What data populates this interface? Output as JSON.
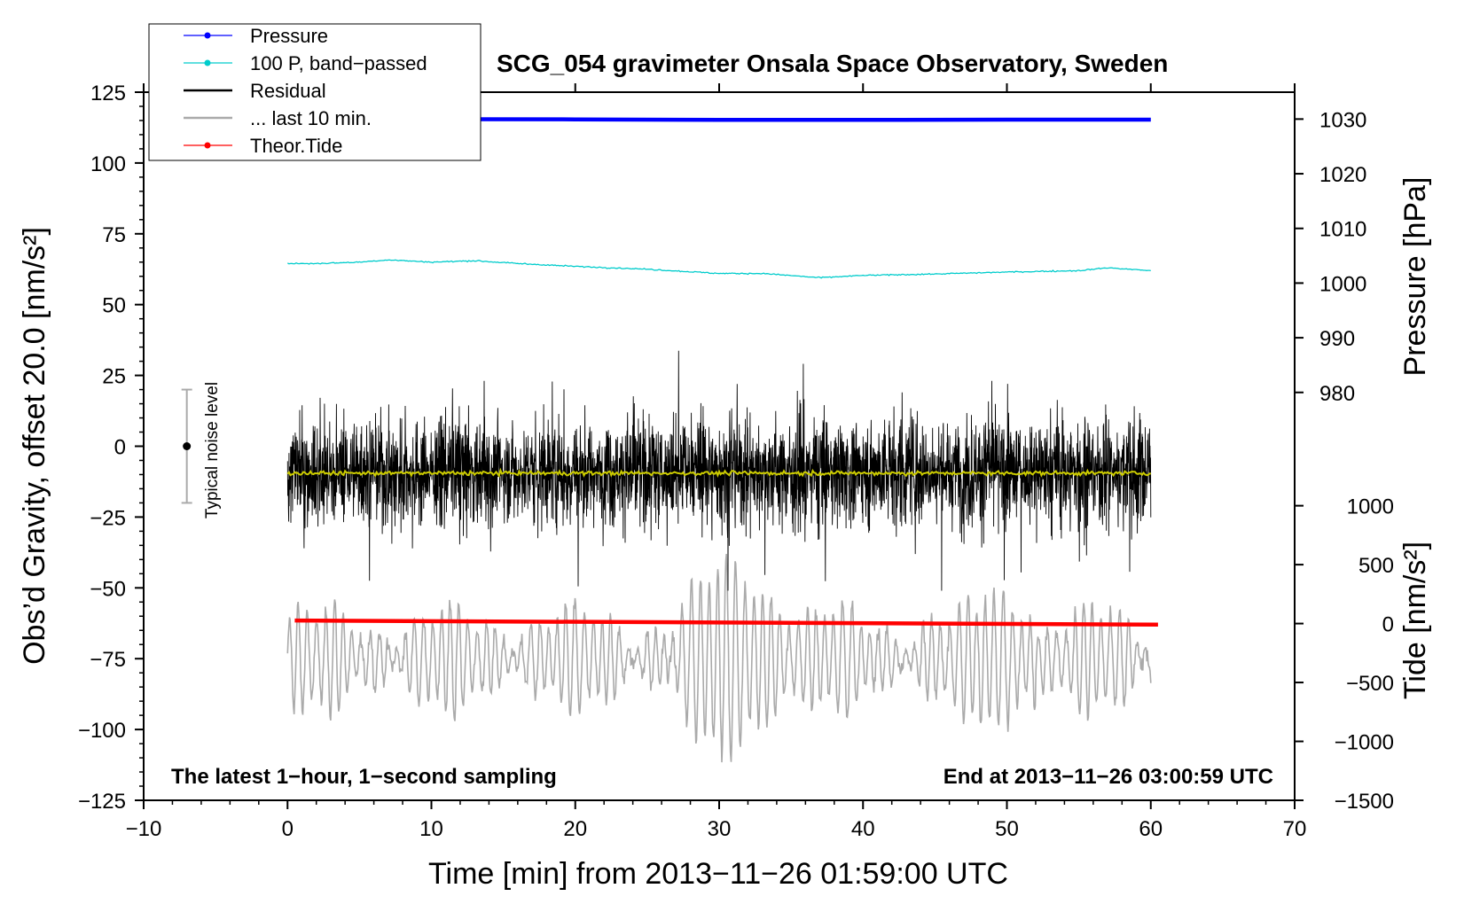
{
  "chart_data": {
    "type": "line",
    "title": "SCG_054 gravimeter Onsala Space Observatory, Sweden",
    "xlabel": "Time [min] from 2013−11−26 01:59:00 UTC",
    "ylabel_left": "Obs’d Gravity, offset 20.0 [nm/s²]",
    "ylabel_right_top": "Pressure [hPa]",
    "ylabel_right_bottom": "Tide [nm/s²]",
    "xlim": [
      -10,
      70
    ],
    "ylim_left": [
      -125,
      125
    ],
    "x_ticks": [
      "−10",
      "0",
      "10",
      "20",
      "30",
      "40",
      "50",
      "60",
      "70"
    ],
    "y_left_ticks": [
      "125",
      "100",
      "75",
      "50",
      "25",
      "0",
      "−25",
      "−50",
      "−75",
      "−100",
      "−125"
    ],
    "y_right_pressure_ticks": [
      "1030",
      "1020",
      "1010",
      "1000",
      "990",
      "980"
    ],
    "y_right_tide_ticks": [
      "1000",
      "500",
      "0",
      "−500",
      "−1000",
      "−1500"
    ],
    "note_left": "The latest 1−hour, 1−second sampling",
    "note_right": "End at 2013−11−26 03:00:59 UTC",
    "noise_label": "Typical noise level",
    "noise_bar": {
      "center": 0,
      "low": -20,
      "high": 20,
      "x": -7
    },
    "legend": [
      {
        "label": "Pressure",
        "color": "#0000ff",
        "marker": true
      },
      {
        "label": "100 P, band−passed",
        "color": "#00cccc",
        "marker": true
      },
      {
        "label": "Residual",
        "color": "#000000",
        "marker": false
      },
      {
        "label": "... last 10 min.",
        "color": "#aaaaaa",
        "marker": false
      },
      {
        "label": "Theor.Tide",
        "color": "#ff0000",
        "marker": true
      }
    ],
    "series": [
      {
        "name": "Pressure",
        "color": "#0000ff",
        "x": [
          0,
          10,
          20,
          30,
          40,
          50,
          60
        ],
        "y": [
          115.5,
          115.5,
          115.4,
          115.2,
          115.2,
          115.3,
          115.3
        ]
      },
      {
        "name": "100 P, band−passed",
        "color": "#00cccc",
        "x": [
          0,
          2,
          5,
          7,
          10,
          13,
          16,
          20,
          25,
          30,
          33,
          37,
          40,
          45,
          50,
          55,
          57,
          60
        ],
        "y": [
          64.5,
          64.5,
          65,
          65.8,
          65,
          65.5,
          64.5,
          63.5,
          62.5,
          61,
          61,
          59.5,
          60.3,
          60.8,
          61.5,
          62,
          63,
          62
        ]
      },
      {
        "name": "Residual",
        "color": "#000000",
        "x_range": [
          0,
          60
        ],
        "mean": -9,
        "amplitude_range": [
          -51,
          34
        ]
      },
      {
        "name": "Residual mean",
        "color": "#cccc00",
        "x_range": [
          0,
          60
        ],
        "y": -9.5
      },
      {
        "name": "... last 10 min.",
        "color": "#aaaaaa",
        "x_range": [
          0,
          60
        ],
        "mean": -75,
        "y_range": [
          -118,
          -37
        ]
      },
      {
        "name": "Theor.Tide",
        "color": "#ff0000",
        "x": [
          0.5,
          60.5
        ],
        "y": [
          -61.5,
          -63
        ]
      }
    ]
  }
}
